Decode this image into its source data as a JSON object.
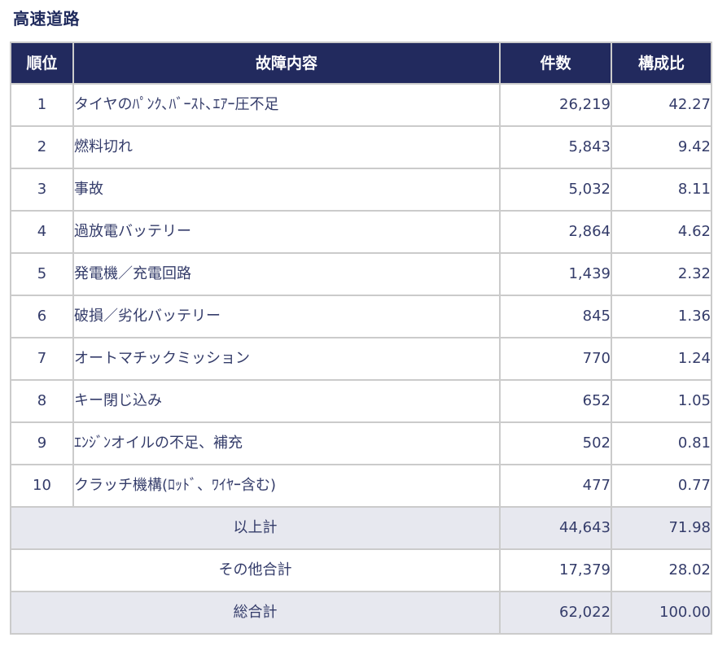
{
  "title": "高速道路",
  "table": {
    "headers": {
      "rank": "順位",
      "description": "故障内容",
      "count": "件数",
      "ratio": "構成比"
    },
    "rows": [
      {
        "rank": "1",
        "description": "タイヤのﾊﾟﾝｸ､ﾊﾞｰｽﾄ､ｴｱｰ圧不足",
        "count": "26,219",
        "ratio": "42.27"
      },
      {
        "rank": "2",
        "description": "燃料切れ",
        "count": "5,843",
        "ratio": "9.42"
      },
      {
        "rank": "3",
        "description": "事故",
        "count": "5,032",
        "ratio": "8.11"
      },
      {
        "rank": "4",
        "description": "過放電バッテリー",
        "count": "2,864",
        "ratio": "4.62"
      },
      {
        "rank": "5",
        "description": "発電機／充電回路",
        "count": "1,439",
        "ratio": "2.32"
      },
      {
        "rank": "6",
        "description": "破損／劣化バッテリー",
        "count": "845",
        "ratio": "1.36"
      },
      {
        "rank": "7",
        "description": "オートマチックミッション",
        "count": "770",
        "ratio": "1.24"
      },
      {
        "rank": "8",
        "description": "キー閉じ込み",
        "count": "652",
        "ratio": "1.05"
      },
      {
        "rank": "9",
        "description": "ｴﾝｼﾞﾝオイルの不足、補充",
        "count": "502",
        "ratio": "0.81"
      },
      {
        "rank": "10",
        "description": "クラッチ機構(ﾛｯﾄﾞ、ﾜｲﾔｰ含む)",
        "count": "477",
        "ratio": "0.77"
      }
    ],
    "summary": [
      {
        "label": "以上計",
        "count": "44,643",
        "ratio": "71.98"
      },
      {
        "label": "その他合計",
        "count": "17,379",
        "ratio": "28.02"
      },
      {
        "label": "総合計",
        "count": "62,022",
        "ratio": "100.00"
      }
    ]
  },
  "colors": {
    "header_bg": "#222a5e",
    "header_text": "#ffffff",
    "title_text": "#1f2a5c",
    "body_text": "#343c6a",
    "border": "#cbcbcb",
    "summary_shade": "#e7e8ef"
  }
}
